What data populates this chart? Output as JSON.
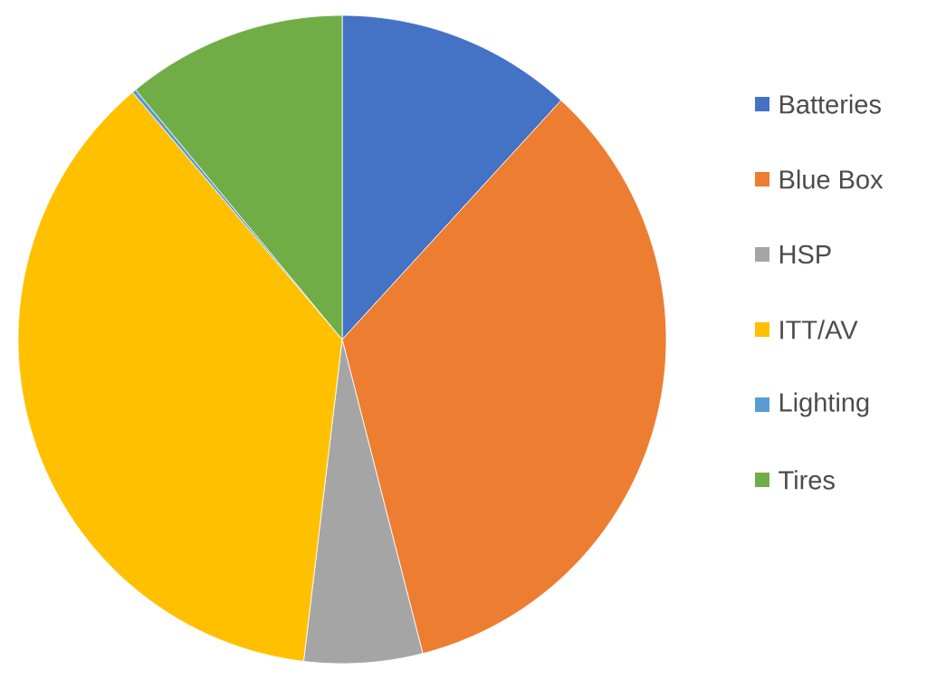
{
  "chart_data": {
    "type": "pie",
    "categories": [
      "Batteries",
      "Blue Box",
      "HSP",
      "ITT/AV",
      "Lighting",
      "Tires"
    ],
    "values": [
      11.8,
      34.2,
      5.9,
      36.9,
      0.2,
      11.0
    ],
    "colors": [
      "#4472c4",
      "#ed7d31",
      "#a5a5a5",
      "#ffc000",
      "#5b9bd5",
      "#70ad47"
    ],
    "legend": "right"
  }
}
